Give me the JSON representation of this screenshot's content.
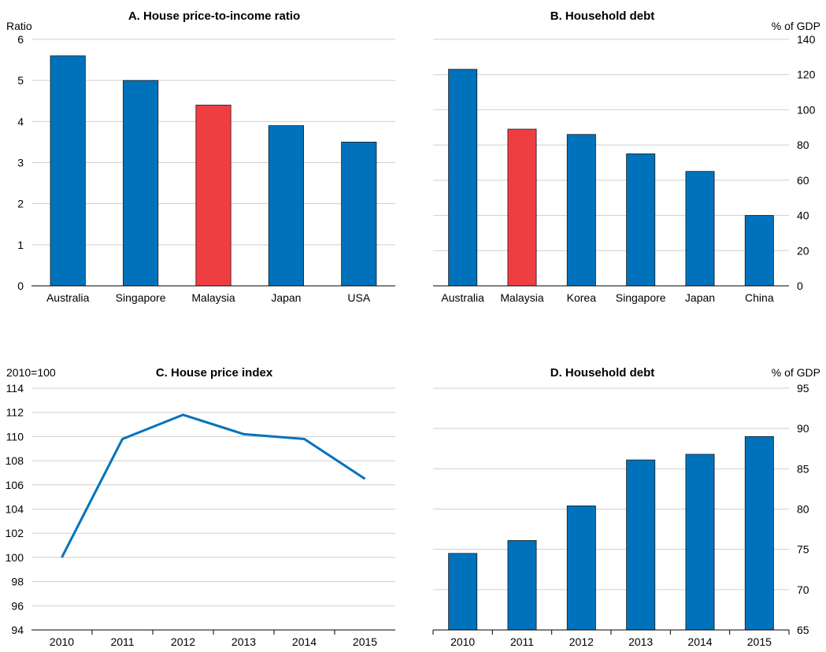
{
  "colors": {
    "blue": "#0072bc",
    "red": "#ef3e42",
    "grid": "#cfcfcf",
    "line": "#0072bc"
  },
  "chart_data": [
    {
      "id": "A",
      "type": "bar",
      "title": "A. House price-to-income ratio",
      "unit_label": "Ratio",
      "y_axis_side": "left",
      "categories": [
        "Australia",
        "Singapore",
        "Malaysia",
        "Japan",
        "USA"
      ],
      "values": [
        5.6,
        5.0,
        4.4,
        3.9,
        3.5
      ],
      "highlight": [
        "Malaysia"
      ],
      "ylim": [
        0,
        6
      ],
      "yticks": [
        0,
        1,
        2,
        3,
        4,
        5,
        6
      ],
      "grid": true
    },
    {
      "id": "B",
      "type": "bar",
      "title": "B. Household debt",
      "unit_label": "% of GDP",
      "y_axis_side": "right",
      "categories": [
        "Australia",
        "Malaysia",
        "Korea",
        "Singapore",
        "Japan",
        "China"
      ],
      "values": [
        123,
        89,
        86,
        75,
        65,
        40
      ],
      "highlight": [
        "Malaysia"
      ],
      "ylim": [
        0,
        140
      ],
      "yticks": [
        0,
        20,
        40,
        60,
        80,
        100,
        120,
        140
      ],
      "grid": true
    },
    {
      "id": "C",
      "type": "line",
      "title": "C. House price index",
      "unit_label": "2010=100",
      "y_axis_side": "left",
      "x": [
        "2010",
        "2011",
        "2012",
        "2013",
        "2014",
        "2015"
      ],
      "values": [
        100.0,
        109.8,
        111.8,
        110.2,
        109.8,
        106.5
      ],
      "ylim": [
        94,
        114
      ],
      "yticks": [
        94,
        96,
        98,
        100,
        102,
        104,
        106,
        108,
        110,
        112,
        114
      ],
      "grid": true
    },
    {
      "id": "D",
      "type": "bar",
      "title": "D. Household debt",
      "unit_label": "% of GDP",
      "y_axis_side": "right",
      "categories": [
        "2010",
        "2011",
        "2012",
        "2013",
        "2014",
        "2015"
      ],
      "values": [
        74.5,
        76.1,
        80.4,
        86.1,
        86.8,
        89.0
      ],
      "highlight": [],
      "ylim": [
        65,
        95
      ],
      "yticks": [
        65,
        70,
        75,
        80,
        85,
        90,
        95
      ],
      "grid": true
    }
  ]
}
